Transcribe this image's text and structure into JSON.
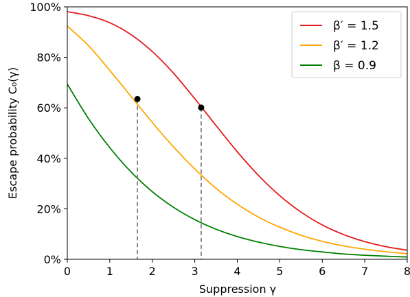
{
  "chart_data": {
    "type": "line",
    "xlabel": "Suppression γ",
    "ylabel": "Escape probability C₀(γ)",
    "xlim": [
      0,
      8
    ],
    "ylim": [
      0,
      100
    ],
    "x_ticks": [
      "0",
      "1",
      "2",
      "3",
      "4",
      "5",
      "6",
      "7",
      "8"
    ],
    "y_ticks": [
      "0%",
      "20%",
      "40%",
      "60%",
      "80%",
      "100%"
    ],
    "grid": false,
    "legend_position": "top-right",
    "reference_line": {
      "y": 100,
      "style": "dashed",
      "color": "#000000"
    },
    "x": [
      0,
      0.5,
      1,
      1.5,
      2,
      2.5,
      3,
      3.5,
      4,
      4.5,
      5,
      5.5,
      6,
      6.5,
      7,
      7.5,
      8
    ],
    "series": [
      {
        "name": "β′ = 1.5",
        "color": "#e41a1c",
        "values": [
          98.1,
          96.5,
          93.7,
          89.0,
          82.3,
          73.7,
          63.6,
          53.0,
          42.6,
          33.2,
          25.2,
          18.7,
          13.6,
          9.8,
          7.0,
          5.0,
          3.6
        ]
      },
      {
        "name": "β′ = 1.2",
        "color": "#ffa500",
        "values": [
          92.4,
          84.6,
          74.8,
          64.5,
          54.2,
          44.5,
          35.8,
          28.1,
          21.8,
          16.7,
          12.7,
          9.5,
          7.1,
          5.3,
          4.0,
          3.0,
          2.2
        ]
      },
      {
        "name": "β = 0.9",
        "color": "#008000",
        "values": [
          69.4,
          55.7,
          44.2,
          34.6,
          26.8,
          20.6,
          15.7,
          11.9,
          9.0,
          6.8,
          5.1,
          3.8,
          2.9,
          2.1,
          1.6,
          1.2,
          0.9
        ]
      }
    ],
    "markers": [
      {
        "x": 1.65,
        "y": 63.5,
        "series": "β′ = 1.2"
      },
      {
        "x": 3.15,
        "y": 60.1,
        "series": "β′ = 1.5"
      }
    ],
    "vertical_guides": [
      {
        "x": 1.65,
        "y_top": 63.5,
        "style": "dashed",
        "color": "#808080"
      },
      {
        "x": 3.15,
        "y_top": 60.1,
        "style": "dashed",
        "color": "#808080"
      }
    ]
  }
}
